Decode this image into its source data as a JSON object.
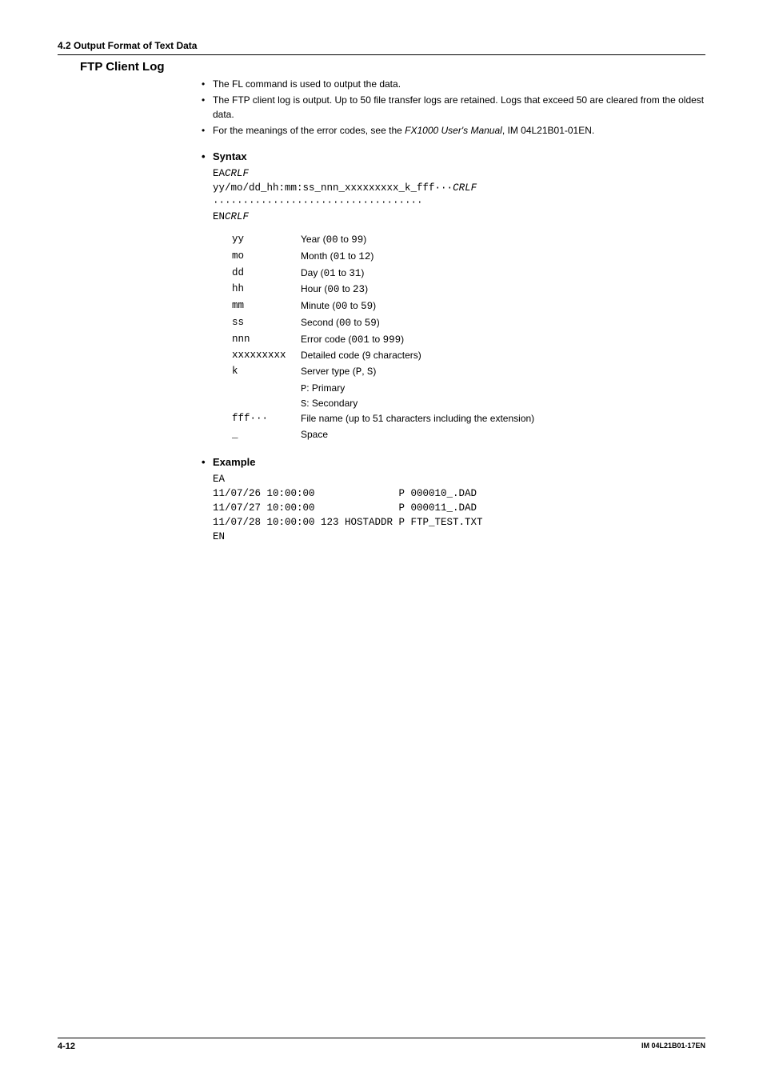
{
  "header": {
    "section": "4.2  Output Format of Text Data"
  },
  "title": "FTP Client Log",
  "intro_bullets": [
    {
      "text": "The FL command is used to output the data."
    },
    {
      "text": "The FTP client log is output. Up to 50 file transfer logs are retained. Logs that exceed 50 are cleared from the oldest data."
    },
    {
      "text_pre": "For the meanings of the error codes, see the ",
      "italic": "FX1000 User's Manual",
      "text_post": ", IM 04L21B01-01EN."
    }
  ],
  "syntax": {
    "label": "Syntax",
    "lines": [
      {
        "plain": "EA",
        "italic": "CRLF"
      },
      {
        "plain": "yy/mo/dd_hh:mm:ss_nnn_xxxxxxxxx_k_fff···",
        "italic": "CRLF"
      },
      {
        "plain": "···································"
      },
      {
        "plain": "EN",
        "italic": "CRLF"
      }
    ]
  },
  "fields": [
    {
      "key": "yy",
      "pre": "Year (",
      "mono": "00",
      "mid": " to ",
      "mono2": "99",
      "post": ")"
    },
    {
      "key": "mo",
      "pre": "Month (",
      "mono": "01",
      "mid": " to ",
      "mono2": "12",
      "post": ")"
    },
    {
      "key": "dd",
      "pre": "Day (",
      "mono": "01",
      "mid": " to ",
      "mono2": "31",
      "post": ")"
    },
    {
      "key": "hh",
      "pre": "Hour (",
      "mono": "00",
      "mid": " to ",
      "mono2": "23",
      "post": ")"
    },
    {
      "key": "mm",
      "pre": "Minute (",
      "mono": "00",
      "mid": " to ",
      "mono2": "59",
      "post": ")"
    },
    {
      "key": "ss",
      "pre": "Second (",
      "mono": "00",
      "mid": " to ",
      "mono2": "59",
      "post": ")"
    },
    {
      "key": "nnn",
      "pre": "Error code (",
      "mono": "001",
      "mid": " to ",
      "mono2": "999",
      "post": ")"
    },
    {
      "key": "xxxxxxxxx",
      "pre": "Detailed code (9 characters)"
    },
    {
      "key": "k",
      "pre": "Server type (",
      "mono": "P",
      "mid": ", ",
      "mono2": "S",
      "post": ")"
    }
  ],
  "server_sub": [
    {
      "mono": "P",
      "text": ": Primary"
    },
    {
      "mono": "S",
      "text": ": Secondary"
    }
  ],
  "fields_tail": [
    {
      "key": "fff···",
      "pre": "File name (up to 51 characters including the extension)"
    },
    {
      "key": "_",
      "pre": "Space"
    }
  ],
  "example": {
    "label": "Example",
    "lines": [
      "EA",
      "11/07/26 10:00:00              P 000010_.DAD",
      "11/07/27 10:00:00              P 000011_.DAD",
      "11/07/28 10:00:00 123 HOSTADDR P FTP_TEST.TXT",
      "EN"
    ]
  },
  "footer": {
    "page": "4-12",
    "doc": "IM 04L21B01-17EN"
  }
}
